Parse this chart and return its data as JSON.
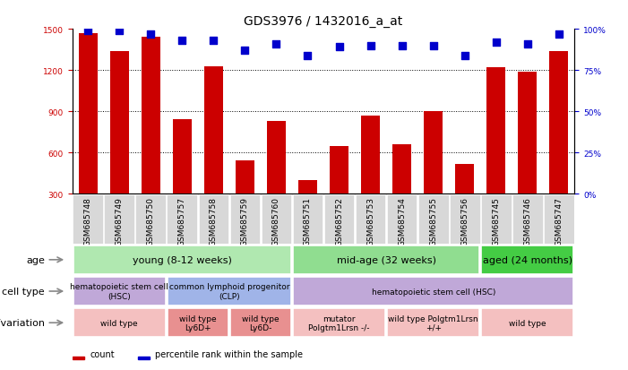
{
  "title": "GDS3976 / 1432016_a_at",
  "samples": [
    "GSM685748",
    "GSM685749",
    "GSM685750",
    "GSM685757",
    "GSM685758",
    "GSM685759",
    "GSM685760",
    "GSM685751",
    "GSM685752",
    "GSM685753",
    "GSM685754",
    "GSM685755",
    "GSM685756",
    "GSM685745",
    "GSM685746",
    "GSM685747"
  ],
  "counts": [
    1470,
    1340,
    1440,
    840,
    1230,
    545,
    830,
    400,
    650,
    870,
    660,
    900,
    520,
    1220,
    1190,
    1340
  ],
  "percentile_ranks": [
    99,
    99,
    97,
    93,
    93,
    87,
    91,
    84,
    89,
    90,
    90,
    90,
    84,
    92,
    91,
    97
  ],
  "ylim_left": [
    300,
    1500
  ],
  "ylim_right": [
    0,
    100
  ],
  "yticks_left": [
    300,
    600,
    900,
    1200,
    1500
  ],
  "yticks_right": [
    0,
    25,
    50,
    75,
    100
  ],
  "age_groups": [
    {
      "label": "young (8-12 weeks)",
      "start": 0,
      "end": 7,
      "color": "#b0e8b0"
    },
    {
      "label": "mid-age (32 weeks)",
      "start": 7,
      "end": 13,
      "color": "#90dd90"
    },
    {
      "label": "aged (24 months)",
      "start": 13,
      "end": 16,
      "color": "#44cc44"
    }
  ],
  "cell_type_groups": [
    {
      "label": "hematopoietic stem cell\n(HSC)",
      "start": 0,
      "end": 3,
      "color": "#c0a8d8"
    },
    {
      "label": "common lymphoid progenitor\n(CLP)",
      "start": 3,
      "end": 7,
      "color": "#a0b4e8"
    },
    {
      "label": "hematopoietic stem cell (HSC)",
      "start": 7,
      "end": 16,
      "color": "#c0a8d8"
    }
  ],
  "genotype_groups": [
    {
      "label": "wild type",
      "start": 0,
      "end": 3,
      "color": "#f4c0c0"
    },
    {
      "label": "wild type\nLy6D+",
      "start": 3,
      "end": 5,
      "color": "#e89090"
    },
    {
      "label": "wild type\nLy6D-",
      "start": 5,
      "end": 7,
      "color": "#e89090"
    },
    {
      "label": "mutator\nPolgtm1Lrsn -/-",
      "start": 7,
      "end": 10,
      "color": "#f4c0c0"
    },
    {
      "label": "wild type Polgtm1Lrsn\n+/+",
      "start": 10,
      "end": 13,
      "color": "#f4c0c0"
    },
    {
      "label": "wild type",
      "start": 13,
      "end": 16,
      "color": "#f4c0c0"
    }
  ],
  "bar_color": "#cc0000",
  "dot_color": "#0000cc",
  "bar_width": 0.6,
  "dot_size": 35,
  "background_color": "#ffffff",
  "tick_color_left": "#cc0000",
  "tick_color_right": "#0000cc",
  "xlabel_bg": "#d0d0d0",
  "title_fontsize": 10,
  "tick_fontsize": 6.5,
  "annot_fontsize": 7,
  "row_label_fontsize": 8
}
